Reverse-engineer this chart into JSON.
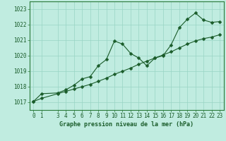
{
  "title": "Graphe pression niveau de la mer (hPa)",
  "bg_color": "#c0ece0",
  "grid_color": "#98d4c4",
  "line_color": "#1a5c2a",
  "border_color": "#2a7a3a",
  "measured_x": [
    0,
    1,
    3,
    4,
    5,
    6,
    7,
    8,
    9,
    10,
    11,
    12,
    13,
    14,
    15,
    16,
    17,
    18,
    19,
    20,
    21,
    22,
    23
  ],
  "measured_y": [
    1017.05,
    1017.55,
    1017.6,
    1017.8,
    1018.1,
    1018.5,
    1018.65,
    1019.35,
    1019.75,
    1020.95,
    1020.75,
    1020.15,
    1019.85,
    1019.35,
    1019.85,
    1020.0,
    1020.7,
    1021.8,
    1022.35,
    1022.75,
    1022.3,
    1022.15,
    1022.2
  ],
  "trend_x": [
    0,
    1,
    3,
    4,
    5,
    6,
    7,
    8,
    9,
    10,
    11,
    12,
    13,
    14,
    15,
    16,
    17,
    18,
    19,
    20,
    21,
    22,
    23
  ],
  "trend_y": [
    1017.05,
    1017.25,
    1017.55,
    1017.7,
    1017.85,
    1018.0,
    1018.15,
    1018.35,
    1018.55,
    1018.8,
    1019.0,
    1019.2,
    1019.45,
    1019.65,
    1019.85,
    1020.05,
    1020.25,
    1020.5,
    1020.75,
    1020.95,
    1021.1,
    1021.2,
    1021.35
  ],
  "xlim": [
    -0.5,
    23.5
  ],
  "ylim": [
    1016.5,
    1023.5
  ],
  "yticks": [
    1017,
    1018,
    1019,
    1020,
    1021,
    1022,
    1023
  ],
  "xticks": [
    0,
    1,
    3,
    4,
    5,
    6,
    7,
    8,
    9,
    10,
    11,
    12,
    13,
    14,
    15,
    16,
    17,
    18,
    19,
    20,
    21,
    22,
    23
  ],
  "markersize": 2.5,
  "linewidth": 0.8,
  "tick_fontsize": 5.5,
  "title_fontsize": 6.0
}
